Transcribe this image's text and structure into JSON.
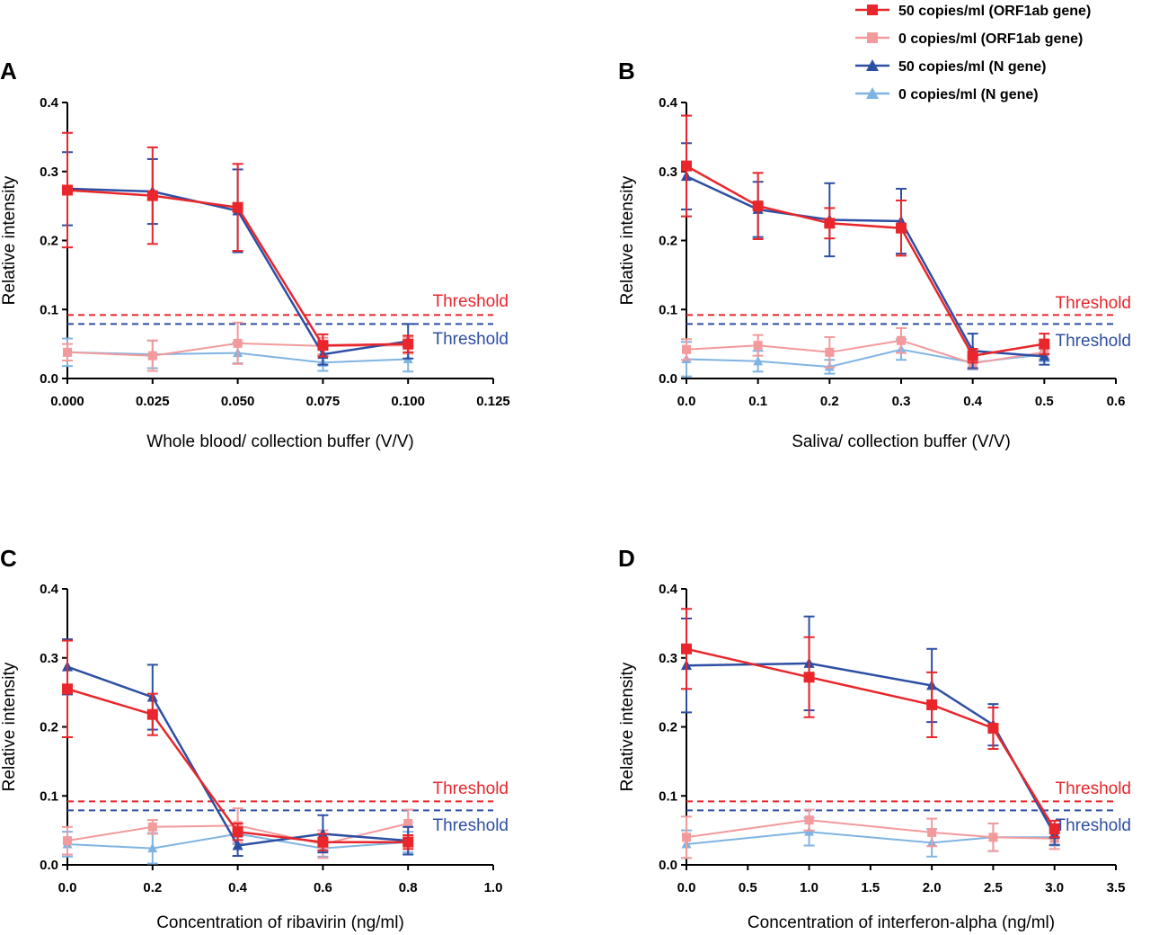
{
  "legend": [
    {
      "label": "50 copies/ml (ORF1ab gene)",
      "color": "#e8262b",
      "marker": "square"
    },
    {
      "label": "0 copies/ml (ORF1ab gene)",
      "color": "#f29a9c",
      "marker": "square"
    },
    {
      "label": "50 copies/ml (N gene)",
      "color": "#2d4fa3",
      "marker": "triangle"
    },
    {
      "label": "0 copies/ml (N gene)",
      "color": "#7fb4e2",
      "marker": "triangle"
    }
  ],
  "colors": {
    "orf50": "#e8262b",
    "orf0": "#f29a9c",
    "n50": "#2d4fa3",
    "n0": "#7fb4e2",
    "threshold_orf": "#e8262b",
    "threshold_n": "#2d4fa3"
  },
  "threshold_label": "Threshold",
  "chart_data": [
    {
      "panel": "A",
      "type": "line",
      "xlabel": "Whole blood/ collection buffer (V/V)",
      "ylabel": "Relative intensity",
      "xlim": [
        0,
        0.125
      ],
      "ylim": [
        0,
        0.4
      ],
      "xticks": [
        "0.000",
        "0.025",
        "0.050",
        "0.075",
        "0.100",
        "0.125"
      ],
      "xtick_values": [
        0,
        0.025,
        0.05,
        0.075,
        0.1,
        0.125
      ],
      "yticks": [
        "0.0",
        "0.1",
        "0.2",
        "0.3",
        "0.4"
      ],
      "thresholds": {
        "orf1ab": 0.092,
        "n": 0.079
      },
      "x": [
        0,
        0.025,
        0.05,
        0.075,
        0.1
      ],
      "series": [
        {
          "name": "50 copies/ml (ORF1ab gene)",
          "values": [
            0.273,
            0.265,
            0.248,
            0.048,
            0.05
          ],
          "err": [
            0.083,
            0.07,
            0.063,
            0.016,
            0.012
          ]
        },
        {
          "name": "0 copies/ml (ORF1ab gene)",
          "values": [
            0.038,
            0.033,
            0.051,
            0.047,
            0.048
          ],
          "err": [
            0.012,
            0.022,
            0.03,
            0.012,
            0.012
          ]
        },
        {
          "name": "50 copies/ml (N gene)",
          "values": [
            0.275,
            0.271,
            0.243,
            0.035,
            0.054
          ],
          "err": [
            0.053,
            0.047,
            0.06,
            0.015,
            0.025
          ]
        },
        {
          "name": "0 copies/ml (N gene)",
          "values": [
            0.038,
            0.035,
            0.037,
            0.023,
            0.028
          ],
          "err": [
            0.02,
            0.02,
            0.015,
            0.012,
            0.018
          ]
        }
      ]
    },
    {
      "panel": "B",
      "type": "line",
      "xlabel": "Saliva/ collection buffer (V/V)",
      "ylabel": "Relative intensity",
      "xlim": [
        0,
        0.6
      ],
      "ylim": [
        0,
        0.4
      ],
      "xticks": [
        "0.0",
        "0.1",
        "0.2",
        "0.3",
        "0.4",
        "0.5",
        "0.6"
      ],
      "xtick_values": [
        0,
        0.1,
        0.2,
        0.3,
        0.4,
        0.5,
        0.6
      ],
      "yticks": [
        "0.0",
        "0.1",
        "0.2",
        "0.3",
        "0.4"
      ],
      "thresholds": {
        "orf1ab": 0.092,
        "n": 0.079
      },
      "x": [
        0,
        0.1,
        0.2,
        0.3,
        0.4,
        0.5
      ],
      "series": [
        {
          "name": "50 copies/ml (ORF1ab gene)",
          "values": [
            0.308,
            0.25,
            0.225,
            0.218,
            0.033,
            0.05
          ],
          "err": [
            0.073,
            0.048,
            0.022,
            0.04,
            0.01,
            0.015
          ]
        },
        {
          "name": "0 copies/ml (ORF1ab gene)",
          "values": [
            0.042,
            0.048,
            0.038,
            0.055,
            0.022,
            0.038
          ],
          "err": [
            0.015,
            0.015,
            0.022,
            0.018,
            0.008,
            0.01
          ]
        },
        {
          "name": "50 copies/ml (N gene)",
          "values": [
            0.293,
            0.245,
            0.23,
            0.228,
            0.04,
            0.032
          ],
          "err": [
            0.048,
            0.04,
            0.053,
            0.047,
            0.025,
            0.012
          ]
        },
        {
          "name": "0 copies/ml (N gene)",
          "values": [
            0.028,
            0.025,
            0.017,
            0.042,
            0.023,
            0.035
          ],
          "err": [
            0.025,
            0.015,
            0.01,
            0.015,
            0.01,
            0.01
          ]
        }
      ]
    },
    {
      "panel": "C",
      "type": "line",
      "xlabel": "Concentration of ribavirin (ng/ml)",
      "ylabel": "Relative intensity",
      "xlim": [
        0,
        1.0
      ],
      "ylim": [
        0,
        0.4
      ],
      "xticks": [
        "0.0",
        "0.2",
        "0.4",
        "0.6",
        "0.8",
        "1.0"
      ],
      "xtick_values": [
        0,
        0.2,
        0.4,
        0.6,
        0.8,
        1.0
      ],
      "yticks": [
        "0.0",
        "0.1",
        "0.2",
        "0.3",
        "0.4"
      ],
      "thresholds": {
        "orf1ab": 0.092,
        "n": 0.079
      },
      "x": [
        0,
        0.2,
        0.4,
        0.6,
        0.8
      ],
      "series": [
        {
          "name": "50 copies/ml (ORF1ab gene)",
          "values": [
            0.255,
            0.218,
            0.048,
            0.033,
            0.033
          ],
          "err": [
            0.07,
            0.03,
            0.012,
            0.012,
            0.01
          ]
        },
        {
          "name": "0 copies/ml (ORF1ab gene)",
          "values": [
            0.035,
            0.055,
            0.057,
            0.03,
            0.06
          ],
          "err": [
            0.02,
            0.01,
            0.025,
            0.02,
            0.02
          ]
        },
        {
          "name": "50 copies/ml (N gene)",
          "values": [
            0.287,
            0.243,
            0.028,
            0.045,
            0.035
          ],
          "err": [
            0.04,
            0.047,
            0.015,
            0.027,
            0.02
          ]
        },
        {
          "name": "0 copies/ml (N gene)",
          "values": [
            0.03,
            0.024,
            0.045,
            0.024,
            0.033
          ],
          "err": [
            0.018,
            0.022,
            0.015,
            0.012,
            0.015
          ]
        }
      ]
    },
    {
      "panel": "D",
      "type": "line",
      "xlabel": "Concentration of interferon-alpha (ng/ml)",
      "ylabel": "Relative intensity",
      "xlim": [
        0,
        3.5
      ],
      "ylim": [
        0,
        0.4
      ],
      "xticks": [
        "0.0",
        "0.5",
        "1.0",
        "1.5",
        "2.0",
        "2.5",
        "3.0",
        "3.5"
      ],
      "xtick_values": [
        0,
        0.5,
        1.0,
        1.5,
        2.0,
        2.5,
        3.0,
        3.5
      ],
      "yticks": [
        "0.0",
        "0.1",
        "0.2",
        "0.3",
        "0.4"
      ],
      "thresholds": {
        "orf1ab": 0.092,
        "n": 0.079
      },
      "x": [
        0,
        1,
        2,
        2.5,
        3
      ],
      "series": [
        {
          "name": "50 copies/ml (ORF1ab gene)",
          "values": [
            0.313,
            0.272,
            0.232,
            0.198,
            0.052
          ],
          "err": [
            0.058,
            0.058,
            0.047,
            0.03,
            0.012
          ]
        },
        {
          "name": "0 copies/ml (ORF1ab gene)",
          "values": [
            0.04,
            0.065,
            0.047,
            0.04,
            0.038
          ],
          "err": [
            0.03,
            0.015,
            0.02,
            0.02,
            0.015
          ]
        },
        {
          "name": "50 copies/ml (N gene)",
          "values": [
            0.289,
            0.292,
            0.26,
            0.203,
            0.044
          ],
          "err": [
            0.068,
            0.068,
            0.053,
            0.03,
            0.015
          ]
        },
        {
          "name": "0 copies/ml (N gene)",
          "values": [
            0.03,
            0.048,
            0.032,
            0.04,
            0.04
          ],
          "err": [
            0.02,
            0.02,
            0.02,
            0.02,
            0.012
          ]
        }
      ]
    }
  ]
}
